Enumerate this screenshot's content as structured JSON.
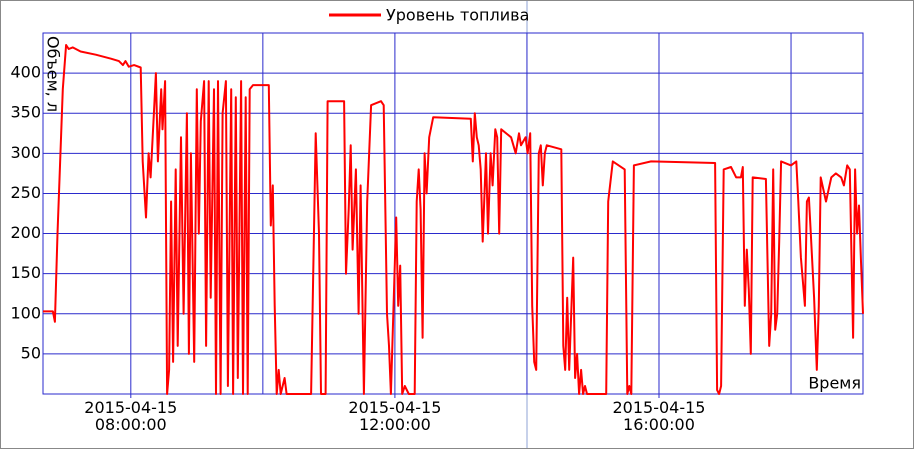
{
  "chart_data": {
    "type": "line",
    "x_label": "Время",
    "y_label": "Объем, л",
    "xlim": [
      6.67,
      19.09
    ],
    "ylim": [
      0,
      450
    ],
    "yticks": [
      50,
      100,
      150,
      200,
      250,
      300,
      350,
      400
    ],
    "xticks": [
      {
        "value": 8,
        "label": "2015-04-15 08:00:00"
      },
      {
        "value": 12,
        "label": "2015-04-15 12:00:00"
      },
      {
        "value": 16,
        "label": "2015-04-15 16:00:00"
      }
    ],
    "xgrid": [
      8,
      10,
      12,
      14,
      16,
      18
    ],
    "grid": true,
    "legend": "top",
    "x": [
      6.67,
      6.82,
      6.85,
      6.89,
      6.97,
      7.02,
      7.06,
      7.12,
      7.24,
      7.47,
      7.7,
      7.82,
      7.88,
      7.92,
      7.97,
      8.05,
      8.15,
      8.18,
      8.23,
      8.27,
      8.3,
      8.35,
      8.38,
      8.41,
      8.46,
      8.48,
      8.52,
      8.55,
      8.58,
      8.61,
      8.64,
      8.68,
      8.71,
      8.76,
      8.8,
      8.85,
      8.88,
      8.91,
      8.96,
      9.0,
      9.03,
      9.06,
      9.11,
      9.14,
      9.18,
      9.21,
      9.26,
      9.29,
      9.32,
      9.36,
      9.39,
      9.44,
      9.47,
      9.52,
      9.55,
      9.59,
      9.62,
      9.67,
      9.7,
      9.74,
      9.77,
      9.8,
      9.85,
      9.94,
      10.09,
      10.12,
      10.15,
      10.18,
      10.21,
      10.24,
      10.27,
      10.33,
      10.36,
      10.73,
      10.8,
      10.85,
      10.88,
      10.95,
      10.98,
      11.23,
      11.26,
      11.3,
      11.33,
      11.36,
      11.41,
      11.45,
      11.48,
      11.53,
      11.58,
      11.64,
      11.79,
      11.83,
      11.88,
      11.91,
      11.94,
      12.02,
      12.05,
      12.08,
      12.11,
      12.15,
      12.21,
      12.3,
      12.33,
      12.36,
      12.39,
      12.42,
      12.45,
      12.48,
      12.52,
      12.58,
      13.15,
      13.18,
      13.21,
      13.24,
      13.27,
      13.3,
      13.33,
      13.38,
      13.41,
      13.45,
      13.48,
      13.52,
      13.55,
      13.58,
      13.61,
      13.76,
      13.83,
      13.88,
      13.91,
      13.98,
      14.01,
      14.05,
      14.08,
      14.11,
      14.14,
      14.18,
      14.21,
      14.24,
      14.27,
      14.3,
      14.52,
      14.55,
      14.58,
      14.61,
      14.64,
      14.67,
      14.7,
      14.73,
      14.76,
      14.79,
      14.82,
      14.85,
      14.88,
      14.91,
      15.2,
      15.23,
      15.3,
      15.48,
      15.52,
      15.55,
      15.58,
      15.62,
      15.88,
      16.85,
      16.88,
      16.91,
      16.94,
      16.98,
      17.09,
      17.17,
      17.24,
      17.27,
      17.3,
      17.33,
      17.36,
      17.39,
      17.42,
      17.62,
      17.67,
      17.7,
      17.73,
      17.76,
      17.79,
      17.82,
      17.85,
      18.0,
      18.08,
      18.11,
      18.15,
      18.18,
      18.21,
      18.24,
      18.27,
      18.3,
      18.35,
      18.39,
      18.42,
      18.45,
      18.53,
      18.61,
      18.68,
      18.76,
      18.8,
      18.85,
      18.89,
      18.94,
      18.97,
      19.0,
      19.03,
      19.06,
      19.09
    ],
    "series": [
      {
        "name": "Уровень топлива",
        "color": "#ff0000",
        "values": [
          103,
          103,
          90,
          200,
          380,
          435,
          430,
          432,
          427,
          423,
          418,
          415,
          410,
          415,
          408,
          410,
          407,
          290,
          220,
          300,
          270,
          350,
          400,
          290,
          380,
          330,
          390,
          0,
          30,
          240,
          40,
          280,
          60,
          320,
          100,
          350,
          50,
          300,
          40,
          380,
          200,
          340,
          390,
          60,
          390,
          120,
          380,
          0,
          390,
          0,
          350,
          390,
          10,
          380,
          0,
          370,
          20,
          390,
          0,
          370,
          0,
          380,
          385,
          385,
          385,
          210,
          260,
          110,
          0,
          30,
          0,
          20,
          0,
          0,
          325,
          200,
          0,
          0,
          365,
          365,
          150,
          230,
          310,
          180,
          280,
          100,
          260,
          0,
          240,
          360,
          365,
          360,
          100,
          60,
          0,
          220,
          110,
          160,
          0,
          10,
          0,
          0,
          240,
          280,
          230,
          70,
          300,
          250,
          320,
          345,
          343,
          290,
          350,
          320,
          310,
          280,
          190,
          300,
          200,
          300,
          260,
          330,
          320,
          200,
          330,
          320,
          300,
          325,
          310,
          320,
          300,
          325,
          110,
          40,
          30,
          300,
          310,
          260,
          300,
          310,
          305,
          60,
          30,
          120,
          30,
          100,
          170,
          20,
          50,
          0,
          30,
          0,
          10,
          0,
          0,
          240,
          290,
          280,
          0,
          10,
          0,
          285,
          290,
          288,
          5,
          0,
          10,
          280,
          283,
          270,
          270,
          283,
          110,
          180,
          130,
          50,
          270,
          268,
          60,
          100,
          280,
          80,
          100,
          190,
          290,
          285,
          290,
          240,
          170,
          140,
          110,
          240,
          245,
          200,
          120,
          30,
          110,
          270,
          240,
          270,
          275,
          270,
          260,
          285,
          280,
          70,
          280,
          200,
          235,
          165,
          100
        ]
      }
    ]
  }
}
